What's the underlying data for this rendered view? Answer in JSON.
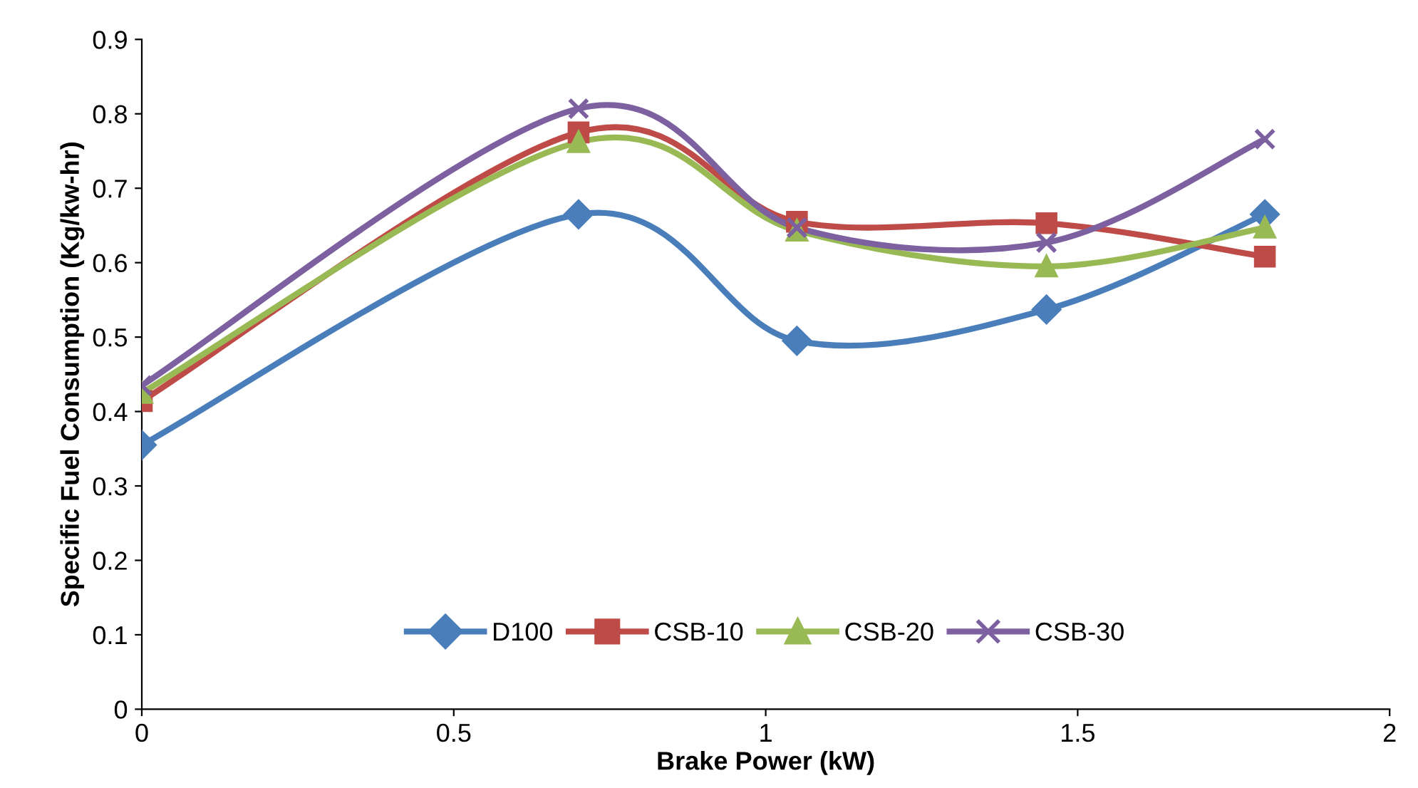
{
  "chart_data": {
    "type": "line",
    "xlabel": "Brake Power (kW)",
    "ylabel": "Specific Fuel Consumption (Kg/kw-hr)",
    "x": [
      0,
      0.7,
      1.05,
      1.45,
      1.8
    ],
    "series": [
      {
        "name": "D100",
        "color": "#4a7ebb",
        "marker": "diamond",
        "values": [
          0.355,
          0.665,
          0.495,
          0.537,
          0.665
        ]
      },
      {
        "name": "CSB-10",
        "color": "#be4b48",
        "marker": "square",
        "values": [
          0.414,
          0.775,
          0.655,
          0.653,
          0.608
        ]
      },
      {
        "name": "CSB-20",
        "color": "#98b954",
        "marker": "triangle",
        "values": [
          0.425,
          0.762,
          0.643,
          0.595,
          0.647
        ]
      },
      {
        "name": "CSB-30",
        "color": "#7d60a0",
        "marker": "cross",
        "values": [
          0.435,
          0.807,
          0.647,
          0.627,
          0.766
        ]
      }
    ],
    "xlim": [
      0,
      2
    ],
    "xticks": [
      0,
      0.5,
      1,
      1.5,
      2
    ],
    "ylim": [
      0,
      0.9
    ],
    "yticks": [
      0,
      0.1,
      0.2,
      0.3,
      0.4,
      0.5,
      0.6,
      0.7,
      0.8,
      0.9
    ],
    "grid": false,
    "legend": "bottom",
    "line_style": "solid"
  }
}
